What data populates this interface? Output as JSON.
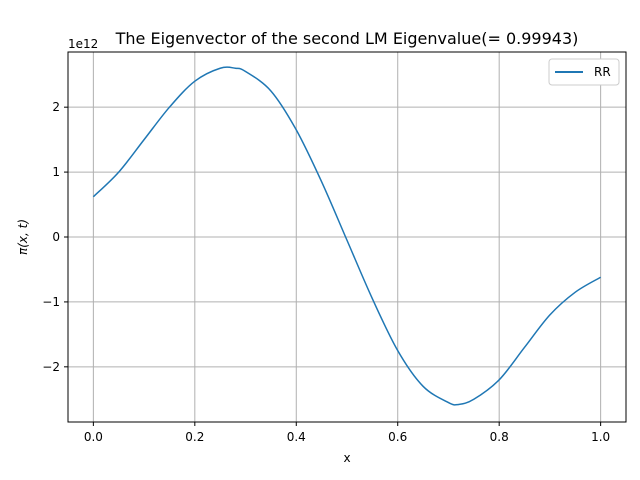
{
  "chart_data": {
    "type": "line",
    "title": "The Eigenvector of the second LM Eigenvalue(= 0.99943)",
    "xlabel": "x",
    "ylabel": "π(x, t)",
    "y_offset_label": "1e12",
    "xlim": [
      -0.05,
      1.05
    ],
    "ylim": [
      -2.85,
      2.85
    ],
    "grid": true,
    "legend_placement": "top-right",
    "x_ticks": [
      0.0,
      0.2,
      0.4,
      0.6,
      0.8,
      1.0
    ],
    "x_tick_labels": [
      "0.0",
      "0.2",
      "0.4",
      "0.6",
      "0.8",
      "1.0"
    ],
    "y_ticks": [
      -2,
      -1,
      0,
      1,
      2
    ],
    "y_tick_labels": [
      "−2",
      "−1",
      "0",
      "1",
      "2"
    ],
    "series": [
      {
        "name": "RR",
        "color": "#1f77b4",
        "x": [
          0.0,
          0.05,
          0.1,
          0.15,
          0.2,
          0.25,
          0.28,
          0.3,
          0.35,
          0.4,
          0.45,
          0.5,
          0.55,
          0.6,
          0.65,
          0.7,
          0.72,
          0.75,
          0.8,
          0.85,
          0.9,
          0.95,
          1.0
        ],
        "y": [
          0.62,
          1.0,
          1.5,
          2.0,
          2.4,
          2.6,
          2.6,
          2.55,
          2.25,
          1.65,
          0.85,
          -0.05,
          -0.95,
          -1.75,
          -2.3,
          -2.55,
          -2.58,
          -2.5,
          -2.2,
          -1.7,
          -1.2,
          -0.85,
          -0.62
        ]
      }
    ]
  }
}
